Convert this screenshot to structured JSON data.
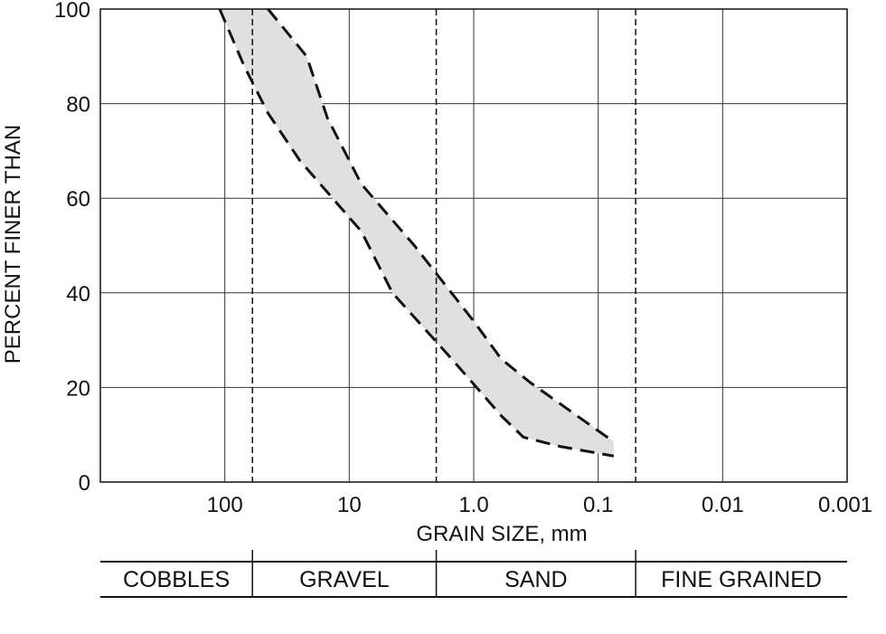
{
  "chart_data": {
    "type": "area",
    "title": "",
    "xlabel": "GRAIN SIZE, mm",
    "ylabel": "PERCENT FINER THAN",
    "x_scale": "log",
    "x_reversed": true,
    "xlim": [
      1000,
      0.001
    ],
    "ylim": [
      0,
      100
    ],
    "x_ticks": [
      {
        "value": 100,
        "label": "100"
      },
      {
        "value": 10,
        "label": "10"
      },
      {
        "value": 1.0,
        "label": "1.0"
      },
      {
        "value": 0.1,
        "label": "0.1"
      },
      {
        "value": 0.01,
        "label": "0.01"
      },
      {
        "value": 0.001,
        "label": "0.001"
      }
    ],
    "y_ticks": [
      {
        "value": 0,
        "label": "0"
      },
      {
        "value": 20,
        "label": "20"
      },
      {
        "value": 40,
        "label": "40"
      },
      {
        "value": 60,
        "label": "60"
      },
      {
        "value": 80,
        "label": "80"
      },
      {
        "value": 100,
        "label": "100"
      }
    ],
    "grid": true,
    "band": {
      "upper": [
        {
          "x": 45,
          "y": 100
        },
        {
          "x": 22,
          "y": 90
        },
        {
          "x": 15,
          "y": 77
        },
        {
          "x": 8,
          "y": 63
        },
        {
          "x": 3,
          "y": 50
        },
        {
          "x": 1.0,
          "y": 34
        },
        {
          "x": 0.6,
          "y": 26
        },
        {
          "x": 0.35,
          "y": 21
        },
        {
          "x": 0.075,
          "y": 8.5
        }
      ],
      "lower": [
        {
          "x": 110,
          "y": 100
        },
        {
          "x": 70,
          "y": 88
        },
        {
          "x": 45,
          "y": 78
        },
        {
          "x": 25,
          "y": 68
        },
        {
          "x": 8,
          "y": 53
        },
        {
          "x": 4.5,
          "y": 40
        },
        {
          "x": 1.5,
          "y": 26
        },
        {
          "x": 0.6,
          "y": 14
        },
        {
          "x": 0.4,
          "y": 9.5
        },
        {
          "x": 0.2,
          "y": 7.5
        },
        {
          "x": 0.075,
          "y": 5.5
        }
      ],
      "fill": "#e0e0e0",
      "line_color": "#111111"
    },
    "boundaries": [
      {
        "value": 60
      },
      {
        "value": 2
      },
      {
        "value": 0.05
      }
    ],
    "soil_classes": [
      {
        "label": "COBBLES"
      },
      {
        "label": "GRAVEL"
      },
      {
        "label": "SAND"
      },
      {
        "label": "FINE GRAINED"
      }
    ]
  }
}
